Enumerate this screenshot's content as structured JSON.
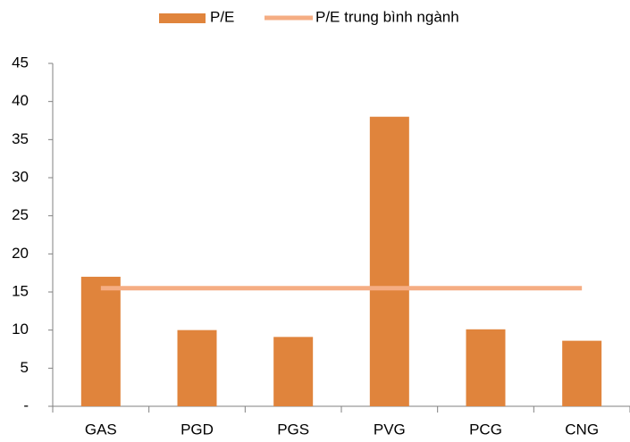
{
  "chart_data": {
    "type": "bar",
    "categories": [
      "GAS",
      "PGD",
      "PGS",
      "PVG",
      "PCG",
      "CNG"
    ],
    "series": [
      {
        "name": "P/E",
        "type": "bar",
        "color": "#e0843c",
        "values": [
          17,
          10,
          9.1,
          38,
          10.1,
          8.6
        ]
      },
      {
        "name": "P/E trung bình ngành",
        "type": "line",
        "color": "#f5ad83",
        "values": [
          15.5,
          15.5,
          15.5,
          15.5,
          15.5,
          15.5
        ]
      }
    ],
    "ylim": [
      0,
      45
    ],
    "yticks": [
      {
        "value": 0,
        "label": "-"
      },
      5,
      10,
      15,
      20,
      25,
      30,
      35,
      40,
      45
    ],
    "legend": "top",
    "grid": false
  }
}
